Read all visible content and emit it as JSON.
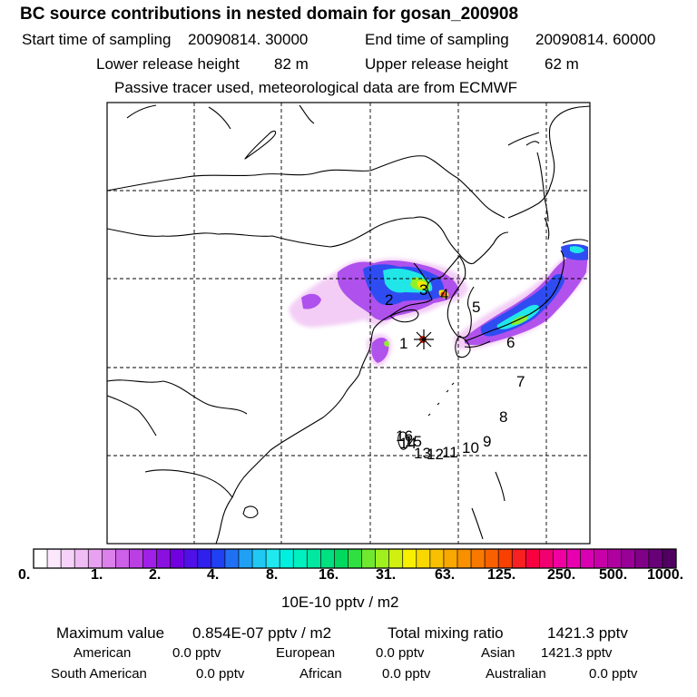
{
  "header": {
    "title": "BC  source contributions in nested domain for gosan_200908",
    "start_label": "Start time of sampling",
    "start_value": "20090814. 30000",
    "end_label": "End time of sampling",
    "end_value": "20090814. 60000",
    "lower_label": "Lower release height",
    "lower_value": "82 m",
    "upper_label": "Upper release height",
    "upper_value": "62 m",
    "note": "Passive tracer used, meteorological data are from ECMWF"
  },
  "map": {
    "point_labels": [
      "1",
      "2",
      "3",
      "4",
      "5",
      "6",
      "7",
      "8",
      "9",
      "10",
      "11",
      "12",
      "13",
      "14",
      "15",
      "16"
    ],
    "release_marker": "asterisk",
    "grid": "dashed"
  },
  "colorbar": {
    "ticks": [
      "0.",
      "1.",
      "2.",
      "4.",
      "8.",
      "16.",
      "31.",
      "63.",
      "125.",
      "250.",
      "500.",
      "1000."
    ],
    "unit": "10E-10 pptv / m2",
    "colors": [
      "#ffffff",
      "#fce8fc",
      "#f6d2f8",
      "#f0bcf4",
      "#e8a0f0",
      "#dc80ec",
      "#cc60e8",
      "#bb40e4",
      "#a020e8",
      "#8a10e0",
      "#7000e0",
      "#5010e8",
      "#3020ee",
      "#2040f4",
      "#2070f4",
      "#20a0f4",
      "#20c8f4",
      "#20e8f0",
      "#00f0e0",
      "#00f0c0",
      "#00e8a0",
      "#00e080",
      "#00d860",
      "#30e040",
      "#70e830",
      "#a0f020",
      "#d0f010",
      "#f8f000",
      "#f8d800",
      "#f8c000",
      "#f8a800",
      "#f89000",
      "#f87800",
      "#f86000",
      "#f84000",
      "#f82020",
      "#f80040",
      "#f00070",
      "#f000a0",
      "#e800b0",
      "#d800b0",
      "#c800a8",
      "#b000a0",
      "#980098",
      "#800088",
      "#680078",
      "#500060"
    ]
  },
  "stats": {
    "max_label": "Maximum value",
    "max_value": "0.854E-07 pptv / m2",
    "total_label": "Total mixing ratio",
    "total_value": "1421.3 pptv",
    "regions": [
      {
        "name": "American",
        "value": "0.0 pptv"
      },
      {
        "name": "European",
        "value": "0.0 pptv"
      },
      {
        "name": "Asian",
        "value": "1421.3 pptv"
      },
      {
        "name": "South American",
        "value": "0.0 pptv"
      },
      {
        "name": "African",
        "value": "0.0 pptv"
      },
      {
        "name": "Australian",
        "value": "0.0 pptv"
      }
    ]
  }
}
